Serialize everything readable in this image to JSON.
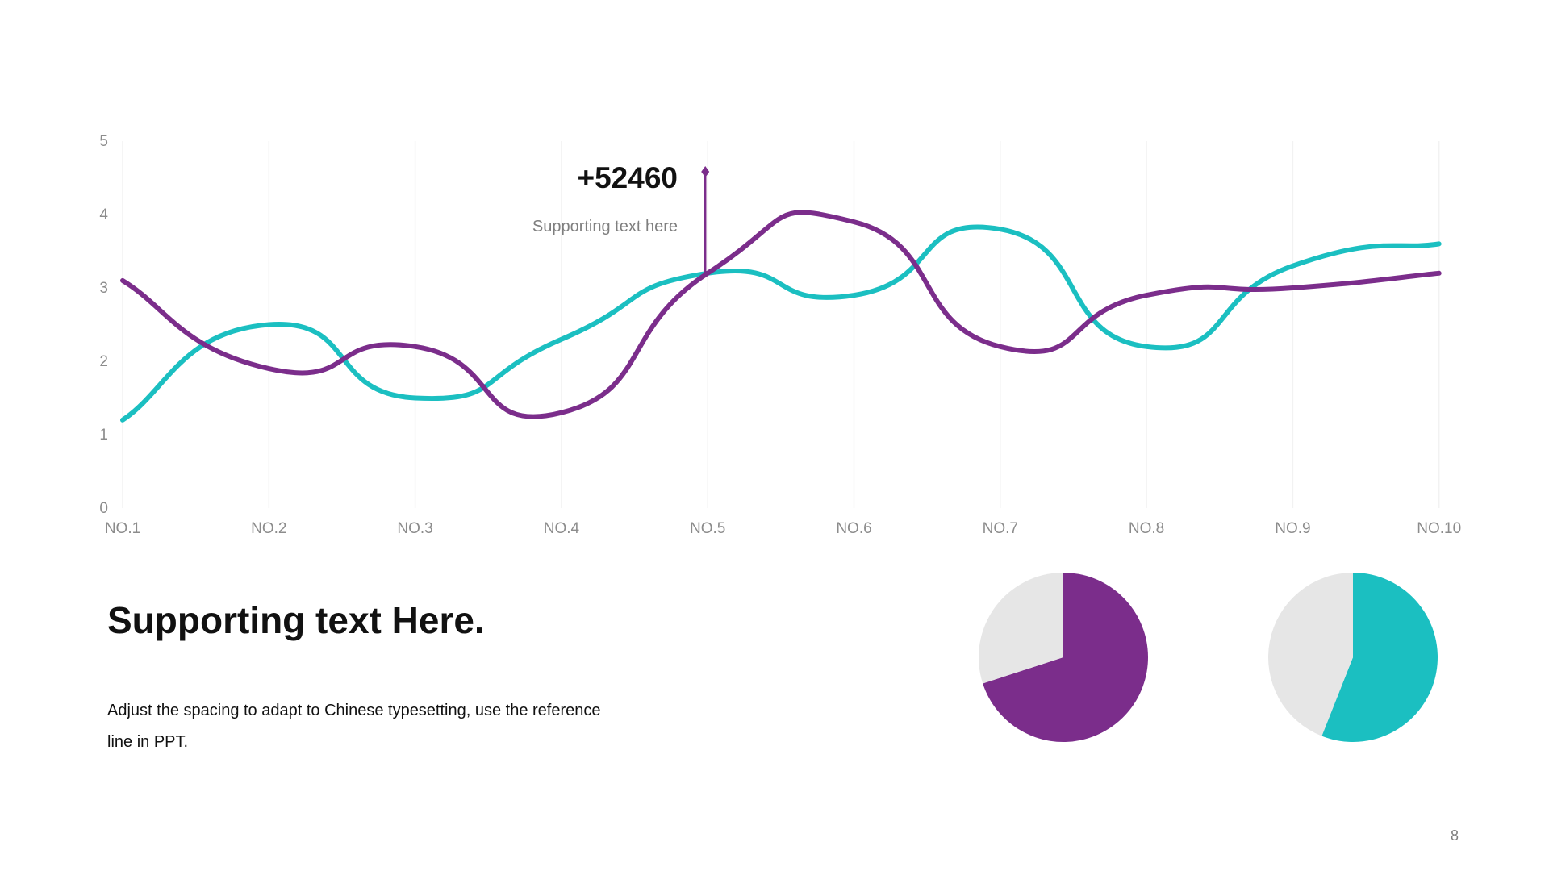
{
  "slide": {
    "callout": {
      "value": "+52460",
      "subtext": "Supporting  text here",
      "category": "NO.5"
    },
    "heading": "Supporting text Here.",
    "body": "Adjust the spacing to adapt to Chinese typesetting, use the reference line in PPT.",
    "page_number": "8"
  },
  "colors": {
    "purple": "#7B2D8B",
    "teal": "#1BBFC1",
    "pie_background": "#E6E6E6",
    "gridline": "#F2F2F2",
    "axis_text": "#8C8C8C"
  },
  "chart_data": [
    {
      "type": "line",
      "smooth": true,
      "categories": [
        "NO.1",
        "NO.2",
        "NO.3",
        "NO.4",
        "NO.5",
        "NO.6",
        "NO.7",
        "NO.8",
        "NO.9",
        "NO.10"
      ],
      "ylim": [
        0,
        5
      ],
      "yticks": [
        0,
        1,
        2,
        3,
        4,
        5
      ],
      "grid": "vertical",
      "legend": "none",
      "series": [
        {
          "color": "#1BBFC1",
          "values": [
            1.2,
            2.5,
            1.5,
            2.3,
            3.2,
            2.9,
            3.8,
            2.2,
            3.3,
            3.6
          ]
        },
        {
          "color": "#7B2D8B",
          "values": [
            3.1,
            1.9,
            2.2,
            1.3,
            3.2,
            3.9,
            2.2,
            2.9,
            3.0,
            3.2
          ]
        }
      ]
    },
    {
      "type": "pie",
      "values": [
        70,
        30
      ],
      "colors": [
        "#7B2D8B",
        "#E6E6E6"
      ]
    },
    {
      "type": "pie",
      "values": [
        56,
        44
      ],
      "colors": [
        "#1BBFC1",
        "#E6E6E6"
      ]
    }
  ]
}
